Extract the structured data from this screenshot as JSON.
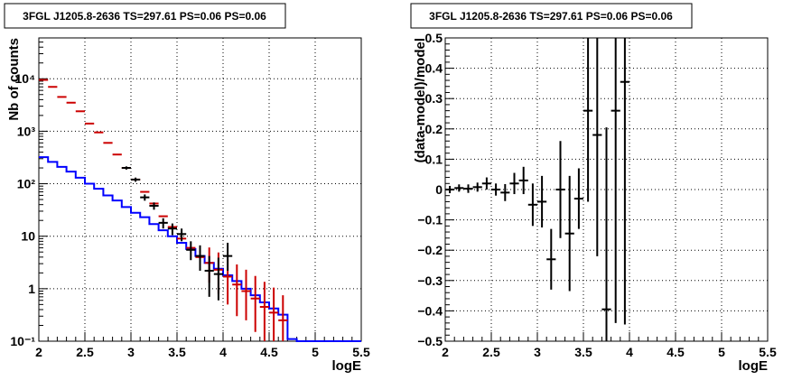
{
  "chart_data": [
    {
      "type": "scatter",
      "title": "3FGL J1205.8-2636 TS=297.61 PS=0.06 PS=0.06",
      "xlabel": "logE",
      "ylabel": "Nb of counts",
      "xlim": [
        2,
        5.5
      ],
      "ylim": [
        0.1,
        60000
      ],
      "yscale": "log",
      "grid": true,
      "x_ticks": [
        "2",
        "2.5",
        "3",
        "3.5",
        "4",
        "4.5",
        "5",
        "5.5"
      ],
      "y_ticks": [
        "10⁻¹",
        "1",
        "10",
        "10²",
        "10³",
        "10⁴"
      ],
      "x_tick_values": [
        2,
        2.5,
        3,
        3.5,
        4,
        4.5,
        5,
        5.5
      ],
      "y_tick_values": [
        0.1,
        1,
        10,
        100,
        1000,
        10000
      ],
      "bin_edges": [
        2.0,
        2.1,
        2.2,
        2.3,
        2.4,
        2.5,
        2.6,
        2.7,
        2.8,
        2.9,
        3.0,
        3.1,
        3.2,
        3.3,
        3.4,
        3.5,
        3.6,
        3.7,
        3.8,
        3.9,
        4.0,
        4.1,
        4.2,
        4.3,
        4.4,
        4.5,
        4.6,
        4.7,
        4.8,
        4.9,
        5.0,
        5.1,
        5.2,
        5.3,
        5.4,
        5.5
      ],
      "series": [
        {
          "role": "model_step",
          "color": "#0000ff",
          "values": [
            320,
            260,
            210,
            170,
            130,
            100,
            80,
            60,
            48,
            36,
            28,
            23,
            17,
            13,
            10,
            7.5,
            5.7,
            4.2,
            3.1,
            2.4,
            1.8,
            1.4,
            1.0,
            0.75,
            0.55,
            0.42,
            0.32,
            0.11,
            0.1,
            0.1,
            0.1,
            0.1,
            0.1,
            0.1,
            0.1
          ]
        },
        {
          "role": "total_model_points",
          "color": "#cc0000",
          "x": [
            2.05,
            2.15,
            2.25,
            2.35,
            2.45,
            2.55,
            2.65,
            2.75,
            2.85,
            2.95,
            3.05,
            3.15,
            3.25,
            3.35,
            3.45,
            3.55,
            3.65,
            3.75,
            3.85,
            3.95,
            4.05,
            4.15,
            4.25,
            4.35,
            4.45,
            4.55,
            4.65
          ],
          "y": [
            9500,
            7000,
            4500,
            3500,
            2400,
            1400,
            950,
            600,
            360,
            200,
            120,
            70,
            42,
            24,
            15,
            9,
            6,
            4,
            3.1,
            2.3,
            1.7,
            1.2,
            0.9,
            0.65,
            0.45,
            0.35,
            0.25
          ],
          "err_low": [
            0,
            0,
            0,
            0,
            0,
            0,
            0,
            0,
            0,
            0,
            0,
            0,
            0,
            0,
            0,
            0,
            0,
            0,
            1.8,
            1.5,
            1.2,
            0.9,
            0.65,
            0.5,
            0.35,
            0.25,
            0.2
          ],
          "err_high": [
            0,
            0,
            0,
            0,
            0,
            0,
            0,
            0,
            0,
            0,
            0,
            0,
            0,
            0,
            0,
            0,
            0,
            0,
            3.0,
            2.6,
            2.0,
            1.7,
            1.4,
            1.1,
            0.9,
            0.7,
            0.5
          ]
        },
        {
          "role": "data_points",
          "color": "#000000",
          "x": [
            2.95,
            3.05,
            3.15,
            3.25,
            3.35,
            3.45,
            3.55,
            3.65,
            3.75,
            3.85,
            3.95,
            4.05
          ],
          "y": [
            200,
            120,
            55,
            38,
            18,
            14,
            11,
            5.5,
            4.2,
            2.2,
            1.9,
            4.2
          ],
          "err_low": [
            14,
            11,
            7.5,
            6,
            4,
            3.5,
            3,
            2,
            2,
            1.5,
            1.3,
            2
          ],
          "err_high": [
            14,
            11,
            7.5,
            6,
            4,
            3.5,
            3,
            2.5,
            2.5,
            2,
            2,
            3.3
          ]
        }
      ]
    },
    {
      "type": "scatter",
      "title": "3FGL J1205.8-2636 TS=297.61 PS=0.06 PS=0.06",
      "xlabel": "logE",
      "ylabel": "(data-model)/model",
      "xlim": [
        2,
        5.5
      ],
      "ylim": [
        -0.5,
        0.5
      ],
      "grid": true,
      "x_ticks": [
        "2",
        "2.5",
        "3",
        "3.5",
        "4",
        "4.5",
        "5",
        "5.5"
      ],
      "y_ticks": [
        "−0.5",
        "−0.4",
        "−0.3",
        "−0.2",
        "−0.1",
        "0",
        "0.1",
        "0.2",
        "0.3",
        "0.4",
        "0.5"
      ],
      "x_tick_values": [
        2,
        2.5,
        3,
        3.5,
        4,
        4.5,
        5,
        5.5
      ],
      "y_tick_values": [
        -0.5,
        -0.4,
        -0.3,
        -0.2,
        -0.1,
        0,
        0.1,
        0.2,
        0.3,
        0.4,
        0.5
      ],
      "series": [
        {
          "role": "residuals",
          "color": "#000000",
          "x": [
            2.05,
            2.15,
            2.25,
            2.35,
            2.45,
            2.55,
            2.65,
            2.75,
            2.85,
            2.95,
            3.05,
            3.15,
            3.25,
            3.35,
            3.45,
            3.55,
            3.65,
            3.75,
            3.85,
            3.95
          ],
          "y": [
            0.0,
            0.005,
            0.003,
            0.008,
            0.02,
            0.0,
            -0.01,
            0.02,
            0.03,
            -0.05,
            -0.04,
            -0.23,
            0.0,
            -0.145,
            -0.03,
            0.26,
            0.18,
            -0.395,
            0.26,
            0.355
          ],
          "err": [
            0.012,
            0.012,
            0.014,
            0.015,
            0.02,
            0.02,
            0.028,
            0.035,
            0.045,
            0.07,
            0.085,
            0.1,
            0.16,
            0.19,
            0.1,
            0.3,
            0.4,
            0.6,
            0.7,
            0.8
          ]
        }
      ]
    }
  ]
}
